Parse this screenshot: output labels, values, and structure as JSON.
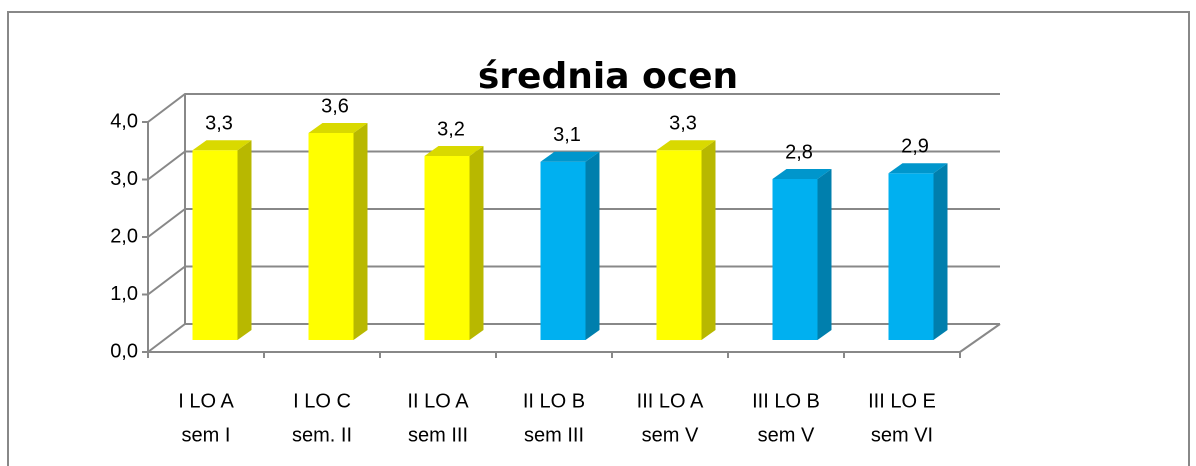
{
  "chart_data": {
    "type": "bar3d",
    "title": "średnia ocen",
    "categories": [
      [
        "I LO A",
        "sem I"
      ],
      [
        "I LO C",
        "sem. II"
      ],
      [
        "II LO A",
        "sem III"
      ],
      [
        "II LO B",
        "sem III"
      ],
      [
        "III LO A",
        "sem V"
      ],
      [
        "III LO B",
        "sem V"
      ],
      [
        "III LO E",
        "sem VI"
      ]
    ],
    "values": [
      3.3,
      3.6,
      3.2,
      3.1,
      3.3,
      2.8,
      2.9
    ],
    "value_labels": [
      "3,3",
      "3,6",
      "3,2",
      "3,1",
      "3,3",
      "2,8",
      "2,9"
    ],
    "colors": [
      "#ffff00",
      "#ffff00",
      "#ffff00",
      "#00b0f0",
      "#ffff00",
      "#00b0f0",
      "#00b0f0"
    ],
    "ylim": [
      0,
      4
    ],
    "yticks": [
      {
        "value": 0,
        "label": "0,0"
      },
      {
        "value": 1,
        "label": "1,0"
      },
      {
        "value": 2,
        "label": "2,0"
      },
      {
        "value": 3,
        "label": "3,0"
      },
      {
        "value": 4,
        "label": "4,0"
      }
    ],
    "grid": true
  }
}
